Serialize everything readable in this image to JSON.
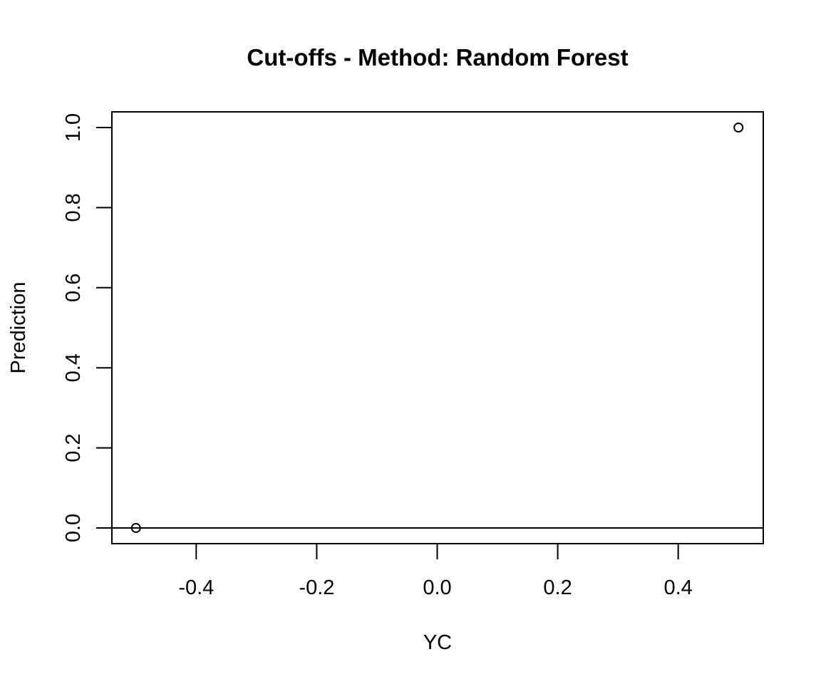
{
  "chart_data": {
    "type": "scatter",
    "title": "Cut-offs - Method: Random Forest",
    "xlabel": "YC",
    "ylabel": "Prediction",
    "xlim": [
      -0.5,
      0.5
    ],
    "ylim": [
      0.0,
      1.0
    ],
    "x_ticks": [
      "-0.4",
      "-0.2",
      "0.0",
      "0.2",
      "0.4"
    ],
    "y_ticks": [
      "0.0",
      "0.2",
      "0.4",
      "0.6",
      "0.8",
      "1.0"
    ],
    "x_tick_values": [
      -0.4,
      -0.2,
      0.0,
      0.2,
      0.4
    ],
    "y_tick_values": [
      0.0,
      0.2,
      0.4,
      0.6,
      0.8,
      1.0
    ],
    "points": [
      {
        "x": -0.5,
        "y": 0.0
      },
      {
        "x": 0.5,
        "y": 1.0
      }
    ],
    "hlines": [
      0.0
    ],
    "marker": "open-circle",
    "grid": false,
    "color": "#000000"
  }
}
